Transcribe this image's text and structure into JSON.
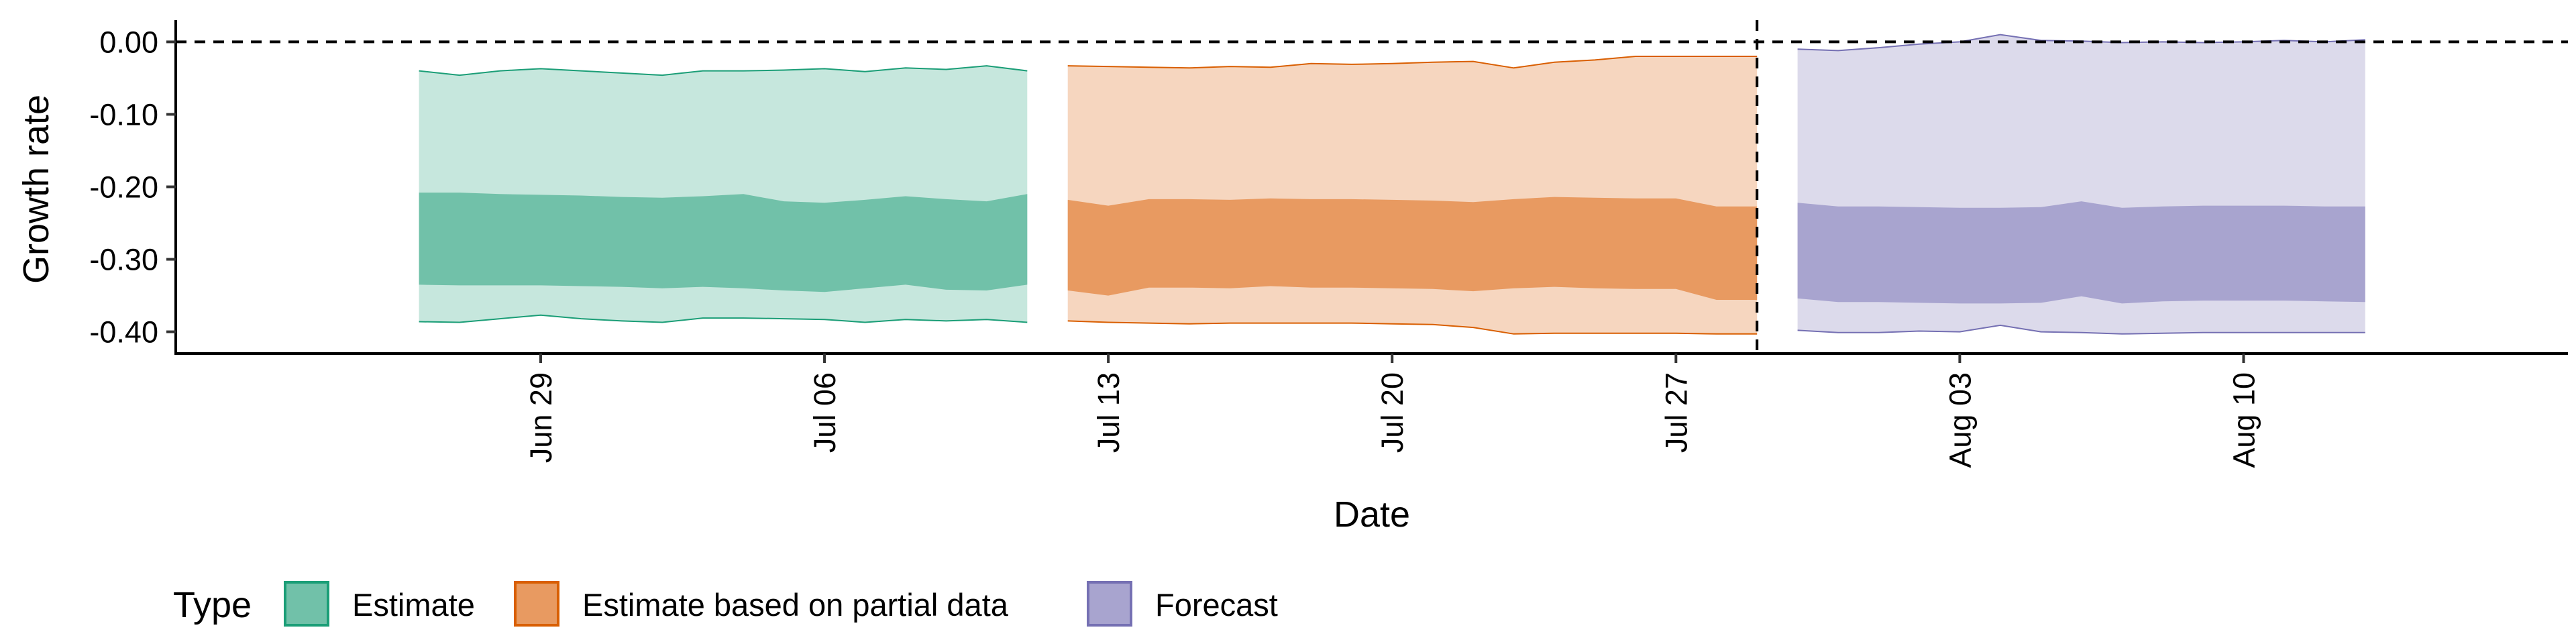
{
  "chart_data": {
    "type": "area",
    "title": "",
    "xlabel": "Date",
    "ylabel": "Growth rate",
    "ylim": [
      -0.43,
      0.03
    ],
    "xlim": [
      "2020-06-20",
      "2020-08-18"
    ],
    "grid": false,
    "y_ticks": [
      0.0,
      -0.1,
      -0.2,
      -0.3,
      -0.4
    ],
    "y_tick_labels": [
      "0.00",
      "-0.10",
      "-0.20",
      "-0.30",
      "-0.40"
    ],
    "x_ticks": [
      "2020-06-29",
      "2020-07-06",
      "2020-07-13",
      "2020-07-20",
      "2020-07-27",
      "2020-08-03",
      "2020-08-10"
    ],
    "x_tick_labels": [
      "Jun 29",
      "Jul 06",
      "Jul 13",
      "Jul 20",
      "Jul 27",
      "Aug 03",
      "Aug 10"
    ],
    "reference_lines": [
      {
        "orientation": "horizontal",
        "y": 0.0,
        "style": "dashed"
      },
      {
        "orientation": "vertical",
        "x": "2020-07-29",
        "style": "dashed"
      }
    ],
    "legend": {
      "title": "Type",
      "position": "bottom-left"
    },
    "series": [
      {
        "name": "Estimate",
        "fill_color": "#71C1A9",
        "outer_fill_color": "#C6E7DD",
        "line_color": "#1B9E77",
        "x": [
          "2020-06-26",
          "2020-06-27",
          "2020-06-28",
          "2020-06-29",
          "2020-06-30",
          "2020-07-01",
          "2020-07-02",
          "2020-07-03",
          "2020-07-04",
          "2020-07-05",
          "2020-07-06",
          "2020-07-07",
          "2020-07-08",
          "2020-07-09",
          "2020-07-10",
          "2020-07-11"
        ],
        "outer_upper": [
          -0.04,
          -0.046,
          -0.04,
          -0.037,
          -0.04,
          -0.043,
          -0.046,
          -0.04,
          -0.04,
          -0.039,
          -0.037,
          -0.041,
          -0.036,
          -0.038,
          -0.033,
          -0.04
        ],
        "inner_upper": [
          -0.208,
          -0.208,
          -0.21,
          -0.211,
          -0.212,
          -0.214,
          -0.215,
          -0.213,
          -0.21,
          -0.22,
          -0.222,
          -0.218,
          -0.213,
          -0.217,
          -0.22,
          -0.21
        ],
        "inner_lower": [
          -0.335,
          -0.336,
          -0.336,
          -0.336,
          -0.337,
          -0.338,
          -0.34,
          -0.338,
          -0.34,
          -0.343,
          -0.345,
          -0.34,
          -0.335,
          -0.342,
          -0.343,
          -0.335
        ],
        "outer_lower": [
          -0.386,
          -0.387,
          -0.382,
          -0.377,
          -0.382,
          -0.385,
          -0.387,
          -0.381,
          -0.381,
          -0.382,
          -0.383,
          -0.387,
          -0.383,
          -0.385,
          -0.383,
          -0.387
        ]
      },
      {
        "name": "Estimate based on partial data",
        "fill_color": "#E89A61",
        "outer_fill_color": "#F6D6BF",
        "line_color": "#D95F02",
        "x": [
          "2020-07-12",
          "2020-07-13",
          "2020-07-14",
          "2020-07-15",
          "2020-07-16",
          "2020-07-17",
          "2020-07-18",
          "2020-07-19",
          "2020-07-20",
          "2020-07-21",
          "2020-07-22",
          "2020-07-23",
          "2020-07-24",
          "2020-07-25",
          "2020-07-26",
          "2020-07-27",
          "2020-07-28",
          "2020-07-29"
        ],
        "outer_upper": [
          -0.033,
          -0.034,
          -0.035,
          -0.036,
          -0.034,
          -0.035,
          -0.03,
          -0.031,
          -0.03,
          -0.028,
          -0.027,
          -0.036,
          -0.028,
          -0.025,
          -0.02,
          -0.02,
          -0.02,
          -0.02
        ],
        "inner_upper": [
          -0.218,
          -0.226,
          -0.217,
          -0.217,
          -0.218,
          -0.216,
          -0.217,
          -0.217,
          -0.218,
          -0.219,
          -0.221,
          -0.217,
          -0.214,
          -0.215,
          -0.216,
          -0.216,
          -0.227,
          -0.227
        ],
        "inner_lower": [
          -0.343,
          -0.35,
          -0.339,
          -0.339,
          -0.34,
          -0.337,
          -0.339,
          -0.339,
          -0.34,
          -0.341,
          -0.344,
          -0.34,
          -0.338,
          -0.34,
          -0.341,
          -0.341,
          -0.356,
          -0.356
        ],
        "outer_lower": [
          -0.385,
          -0.387,
          -0.388,
          -0.389,
          -0.388,
          -0.388,
          -0.388,
          -0.388,
          -0.389,
          -0.39,
          -0.394,
          -0.403,
          -0.402,
          -0.402,
          -0.402,
          -0.402,
          -0.403,
          -0.403
        ]
      },
      {
        "name": "Forecast",
        "fill_color": "#A8A4CF",
        "outer_fill_color": "#DCDAEB",
        "line_color": "#7570B3",
        "x": [
          "2020-07-30",
          "2020-07-31",
          "2020-08-01",
          "2020-08-02",
          "2020-08-03",
          "2020-08-04",
          "2020-08-05",
          "2020-08-06",
          "2020-08-07",
          "2020-08-08",
          "2020-08-09",
          "2020-08-10",
          "2020-08-11",
          "2020-08-12",
          "2020-08-13"
        ],
        "outer_upper": [
          -0.01,
          -0.012,
          -0.008,
          -0.003,
          0.0,
          0.01,
          0.002,
          0.001,
          -0.001,
          0.0,
          -0.001,
          0.0,
          0.002,
          0.0,
          0.003
        ],
        "inner_upper": [
          -0.222,
          -0.227,
          -0.227,
          -0.228,
          -0.229,
          -0.229,
          -0.228,
          -0.22,
          -0.229,
          -0.227,
          -0.226,
          -0.226,
          -0.226,
          -0.227,
          -0.227
        ],
        "inner_lower": [
          -0.354,
          -0.359,
          -0.359,
          -0.36,
          -0.361,
          -0.361,
          -0.36,
          -0.351,
          -0.361,
          -0.358,
          -0.357,
          -0.357,
          -0.357,
          -0.358,
          -0.359
        ],
        "outer_lower": [
          -0.398,
          -0.401,
          -0.401,
          -0.399,
          -0.4,
          -0.391,
          -0.4,
          -0.401,
          -0.403,
          -0.402,
          -0.401,
          -0.401,
          -0.401,
          -0.401,
          -0.401
        ]
      }
    ]
  }
}
